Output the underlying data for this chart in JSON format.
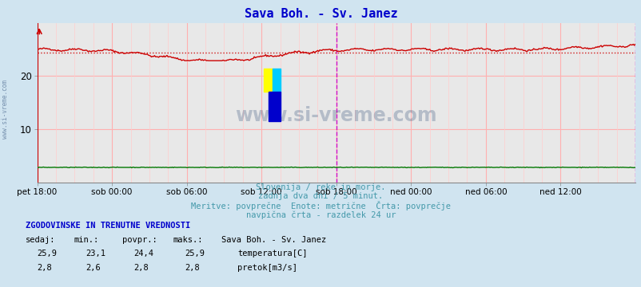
{
  "title": "Sava Boh. - Sv. Janez",
  "bg_color": "#d0e4f0",
  "plot_bg_color": "#e8e8e8",
  "grid_color": "#ffb0b0",
  "minor_grid_color": "#ffcccc",
  "xlabel_ticks": [
    "pet 18:00",
    "sob 00:00",
    "sob 06:00",
    "sob 12:00",
    "sob 18:00",
    "ned 00:00",
    "ned 06:00",
    "ned 12:00"
  ],
  "tick_positions": [
    0,
    72,
    144,
    216,
    288,
    360,
    432,
    504
  ],
  "total_points": 577,
  "ylim": [
    0,
    30
  ],
  "yticks": [
    10,
    20
  ],
  "temp_avg": 24.4,
  "temp_min": 23.1,
  "temp_max": 25.9,
  "flow_avg": 2.8,
  "flow_min": 2.6,
  "flow_max": 2.8,
  "temp_current": "25,9",
  "flow_current": "2,8",
  "temp_min_str": "23,1",
  "temp_avg_str": "24,4",
  "temp_max_str": "25,9",
  "flow_min_str": "2,6",
  "flow_avg_str": "2,8",
  "flow_max_str": "2,8",
  "temp_color": "#cc0000",
  "flow_color": "#007700",
  "avg_line_color": "#cc0000",
  "vline_color": "#cc00cc",
  "title_color": "#0000cc",
  "subtitle_color": "#4499aa",
  "label_color": "#0000cc",
  "watermark_color": "#1a3a6a",
  "watermark_alpha": 0.25,
  "subtitle_lines": [
    "Slovenija / reke in morje.",
    "zadnja dva dni / 5 minut.",
    "Meritve: povprečne  Enote: metrične  Črta: povprečje",
    "navpična črta - razdelek 24 ur"
  ],
  "stats_header": "ZGODOVINSKE IN TRENUTNE VREDNOSTI",
  "col_headers": [
    "sedaj:",
    "min.:",
    "povpr.:",
    "maks.:"
  ],
  "temp_label": "temperatura[C]",
  "flow_label": "pretok[m3/s]",
  "logo_yellow": "#ffff00",
  "logo_cyan": "#00ccff",
  "logo_blue": "#0000cc"
}
